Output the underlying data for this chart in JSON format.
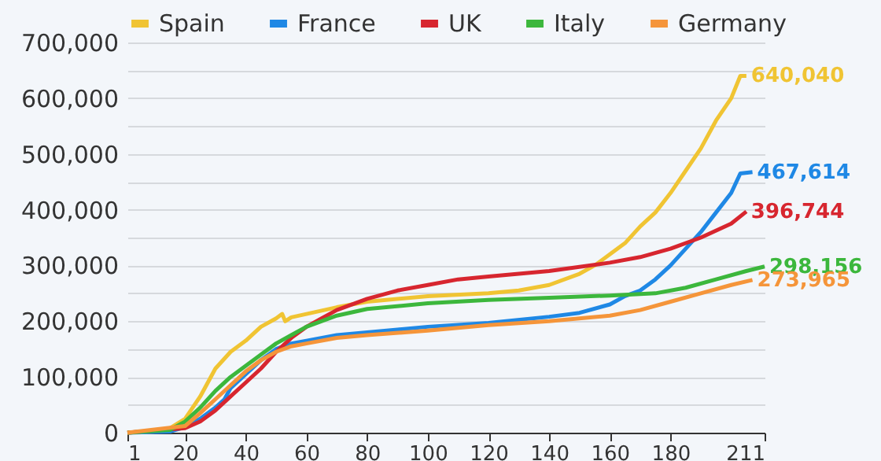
{
  "chart_data": {
    "type": "line",
    "xlim": [
      1,
      211
    ],
    "xticks": [
      1,
      20,
      40,
      60,
      80,
      100,
      120,
      140,
      160,
      180,
      211
    ],
    "ylim": [
      0,
      700000
    ],
    "yticks": [
      0,
      {
        "value": 50000,
        "label": null
      },
      {
        "value": 100000,
        "label": "100,000"
      },
      {
        "value": 150000,
        "label": null
      },
      {
        "value": 200000,
        "label": "200,000"
      },
      {
        "value": 250000,
        "label": null
      },
      {
        "value": 300000,
        "label": "300,000"
      },
      {
        "value": 350000,
        "label": null
      },
      {
        "value": 400000,
        "label": "400,000"
      },
      {
        "value": 450000,
        "label": null
      },
      {
        "value": 500000,
        "label": "500,000"
      },
      {
        "value": 550000,
        "label": null
      },
      {
        "value": 600000,
        "label": "600,000"
      },
      {
        "value": 650000,
        "label": null
      },
      {
        "value": 700000,
        "label": "700,000"
      }
    ],
    "grid": "y",
    "legend": "top",
    "marker": "none",
    "line_style": "solid",
    "series": [
      {
        "name": "Spain",
        "color": "#f0c433",
        "x": [
          1,
          10,
          15,
          20,
          25,
          30,
          35,
          40,
          45,
          50,
          52,
          53,
          55,
          60,
          70,
          80,
          100,
          120,
          130,
          140,
          150,
          155,
          160,
          165,
          170,
          175,
          180,
          185,
          190,
          195,
          200,
          203,
          205
        ],
        "values": [
          0,
          2000,
          8000,
          25000,
          65000,
          115000,
          145000,
          165000,
          190000,
          205000,
          213000,
          200000,
          207000,
          213000,
          225000,
          235000,
          245000,
          250000,
          255000,
          265000,
          285000,
          300000,
          320000,
          340000,
          370000,
          395000,
          430000,
          470000,
          510000,
          560000,
          600000,
          640000,
          640040
        ]
      },
      {
        "name": "France",
        "color": "#1f88e5",
        "x": [
          1,
          15,
          20,
          25,
          30,
          33,
          35,
          40,
          45,
          50,
          55,
          60,
          70,
          80,
          90,
          100,
          120,
          140,
          150,
          160,
          165,
          170,
          175,
          180,
          185,
          190,
          195,
          200,
          203,
          207
        ],
        "values": [
          0,
          2000,
          10000,
          25000,
          45000,
          60000,
          80000,
          105000,
          130000,
          150000,
          160000,
          165000,
          175000,
          180000,
          185000,
          190000,
          197000,
          208000,
          215000,
          230000,
          245000,
          255000,
          275000,
          300000,
          330000,
          360000,
          395000,
          430000,
          465000,
          467614
        ]
      },
      {
        "name": "UK",
        "color": "#d7262f",
        "x": [
          1,
          20,
          25,
          30,
          35,
          40,
          45,
          50,
          55,
          60,
          65,
          70,
          80,
          90,
          100,
          110,
          120,
          140,
          160,
          170,
          180,
          190,
          200,
          205
        ],
        "values": [
          0,
          8000,
          20000,
          40000,
          65000,
          90000,
          115000,
          145000,
          170000,
          190000,
          205000,
          220000,
          240000,
          255000,
          265000,
          275000,
          280000,
          290000,
          305000,
          315000,
          330000,
          350000,
          375000,
          396744
        ]
      },
      {
        "name": "Italy",
        "color": "#3cb73c",
        "x": [
          1,
          15,
          20,
          25,
          30,
          35,
          40,
          45,
          50,
          55,
          60,
          70,
          80,
          100,
          120,
          140,
          160,
          175,
          185,
          195,
          205,
          211
        ],
        "values": [
          0,
          5000,
          20000,
          45000,
          75000,
          100000,
          120000,
          140000,
          160000,
          175000,
          190000,
          210000,
          222000,
          232000,
          238000,
          242000,
          246000,
          250000,
          260000,
          275000,
          290000,
          298156
        ]
      },
      {
        "name": "Germany",
        "color": "#f5953a",
        "x": [
          1,
          20,
          25,
          30,
          35,
          40,
          45,
          50,
          55,
          60,
          70,
          80,
          100,
          120,
          140,
          160,
          170,
          180,
          190,
          200,
          207
        ],
        "values": [
          0,
          12000,
          35000,
          60000,
          85000,
          110000,
          130000,
          145000,
          155000,
          160000,
          170000,
          175000,
          183000,
          193000,
          200000,
          210000,
          220000,
          235000,
          250000,
          265000,
          273965
        ]
      }
    ],
    "annotations": [
      {
        "text": "640,040",
        "x": 205,
        "y": 640040
      },
      {
        "text": "467,614",
        "x": 207,
        "y": 467614
      },
      {
        "text": "396,744",
        "x": 205,
        "y": 396744
      },
      {
        "text": "298,156",
        "x": 211,
        "y": 298156
      },
      {
        "text": "273,965",
        "x": 207,
        "y": 273965
      }
    ]
  }
}
